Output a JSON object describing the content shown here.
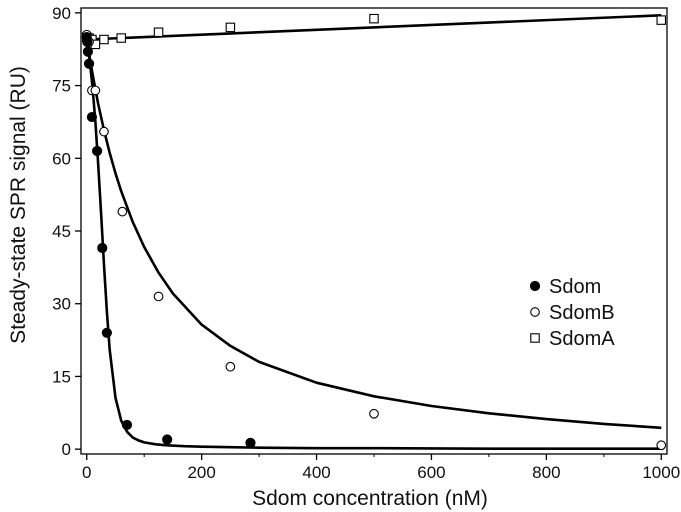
{
  "chart_data": {
    "type": "scatter",
    "title": "",
    "xlabel": "Sdom concentration (nM)",
    "ylabel": "Steady-state SPR signal (RU)",
    "xlim": [
      -10,
      1010
    ],
    "ylim": [
      -1,
      91
    ],
    "xticks": [
      "0",
      "200",
      "400",
      "600",
      "800",
      "1000"
    ],
    "yticks": [
      "0",
      "15",
      "30",
      "45",
      "60",
      "75",
      "90"
    ],
    "grid": false,
    "legend_position": "right-middle",
    "series": [
      {
        "name": "Sdom",
        "marker": "filled-circle",
        "color": "#000000",
        "x": [
          0,
          1,
          2,
          4,
          9,
          18,
          27,
          35,
          70,
          140,
          285
        ],
        "y": [
          85,
          84,
          82,
          79.5,
          68.5,
          61.5,
          41.5,
          24,
          5,
          2,
          1.3
        ],
        "fit_x": [
          0,
          3,
          6,
          10,
          15,
          20,
          25,
          30,
          35,
          40,
          50,
          60,
          70,
          80,
          90,
          100,
          120,
          140,
          170,
          200,
          250,
          300,
          400,
          500,
          600,
          700,
          800,
          900,
          1000
        ],
        "fit_y": [
          84.2,
          82.1,
          79.2,
          74.7,
          67.5,
          58.7,
          48.6,
          38.0,
          28.3,
          20.5,
          10.6,
          5.9,
          3.6,
          2.4,
          1.8,
          1.4,
          1.0,
          0.8,
          0.6,
          0.5,
          0.4,
          0.3,
          0.2,
          0.2,
          0.15,
          0.1,
          0.1,
          0.1,
          0.1
        ]
      },
      {
        "name": "SdomB",
        "marker": "open-circle",
        "color": "#000000",
        "x": [
          0,
          4,
          9,
          15,
          30,
          62,
          125,
          250,
          500,
          1000
        ],
        "y": [
          85.5,
          84,
          74,
          74,
          65.5,
          49,
          31.5,
          17,
          7.3,
          0.8
        ],
        "fit_x": [
          0,
          10,
          20,
          30,
          40,
          50,
          60,
          80,
          100,
          125,
          150,
          200,
          250,
          300,
          400,
          500,
          600,
          700,
          800,
          900,
          1000
        ],
        "fit_y": [
          84.5,
          77.4,
          71.2,
          65.8,
          61.1,
          56.9,
          53.2,
          46.9,
          41.7,
          36.4,
          32.1,
          25.7,
          21.3,
          18.0,
          13.7,
          10.9,
          8.9,
          7.4,
          6.2,
          5.2,
          4.4
        ]
      },
      {
        "name": "SdomA",
        "marker": "open-square",
        "color": "#000000",
        "x": [
          0,
          4,
          9,
          15,
          30,
          60,
          125,
          250,
          500,
          1000
        ],
        "y": [
          85,
          84.8,
          84.5,
          83.5,
          84.5,
          84.8,
          86,
          87,
          88.8,
          88.5
        ],
        "fit_x": [
          0,
          1000
        ],
        "fit_y": [
          84.5,
          89.5
        ]
      }
    ]
  }
}
